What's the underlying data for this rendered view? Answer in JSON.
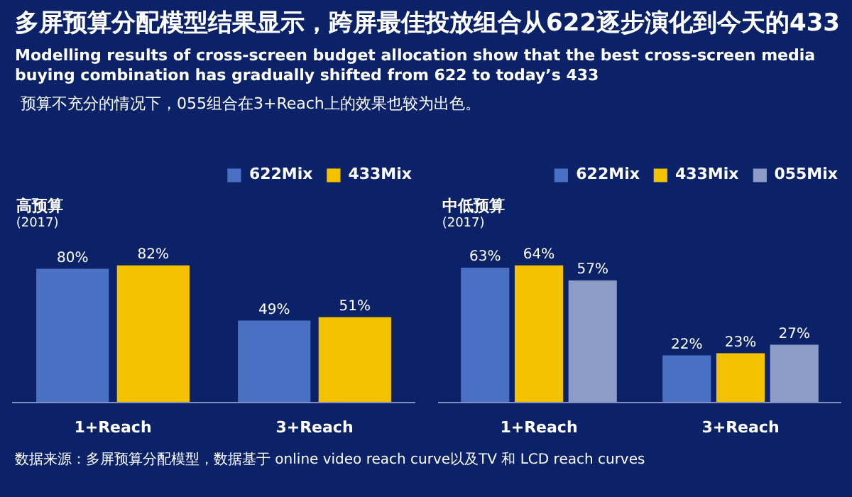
{
  "chart_data": [
    {
      "type": "other",
      "title": "多屏预算分配模型结果显示，跨屏最佳投放组合从622逐步演化到今天的433",
      "subtitle": "Modelling results of cross-screen budget allocation show that the best cross-screen media buying combination has gradually shifted from 622 to today’s 433",
      "annotations": [
        "预算不充分的情况下，055组合在3+Reach上的效果也较为出色。",
        "数据来源：多屏预算分配模型，数据基于 online video reach curve以及TV 和 LCD reach curves"
      ]
    },
    {
      "type": "bar",
      "title": "高预算",
      "subtitle": "(2017)",
      "categories": [
        "1+Reach",
        "3+Reach"
      ],
      "tick_labels": "x",
      "legend": "top",
      "series": [
        {
          "name": "622Mix",
          "color": "#4a70c4",
          "values": [
            80,
            49
          ],
          "value_labels": [
            "80%",
            "49%"
          ]
        },
        {
          "name": "433Mix",
          "color": "#f2c200",
          "values": [
            82,
            51
          ],
          "value_labels": [
            "82%",
            "51%"
          ]
        }
      ]
    },
    {
      "type": "bar",
      "title": "中低预算",
      "subtitle": "(2017)",
      "categories": [
        "1+Reach",
        "3+Reach"
      ],
      "tick_labels": "x",
      "legend": "top",
      "series": [
        {
          "name": "622Mix",
          "color": "#4a70c4",
          "values": [
            63,
            22
          ],
          "value_labels": [
            "63%",
            "22%"
          ]
        },
        {
          "name": "433Mix",
          "color": "#f2c200",
          "values": [
            64,
            23
          ],
          "value_labels": [
            "64%",
            "23%"
          ]
        },
        {
          "name": "055Mix",
          "color": "#8d9cc6",
          "values": [
            57,
            27
          ],
          "value_labels": [
            "57%",
            "27%"
          ]
        }
      ]
    }
  ]
}
